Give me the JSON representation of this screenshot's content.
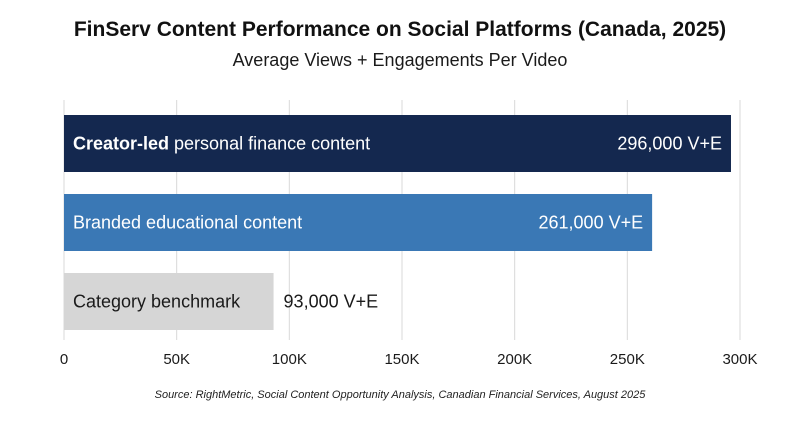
{
  "chart_data": {
    "type": "bar",
    "orientation": "horizontal",
    "title": "FinServ Content Performance on Social Platforms (Canada, 2025)",
    "subtitle": "Average Views + Engagements Per Video",
    "categories": [
      {
        "bold": "Creator-led",
        "rest": " personal finance content",
        "value_label": "296,000 V+E",
        "color": "#14284f",
        "text_color": "#ffffff",
        "label_outside": false
      },
      {
        "bold": "",
        "rest": "Branded educational content",
        "value_label": "261,000 V+E",
        "color": "#3a78b5",
        "text_color": "#ffffff",
        "label_outside": false
      },
      {
        "bold": "",
        "rest": "Category benchmark",
        "value_label": "93,000 V+E",
        "color": "#d6d6d6",
        "text_color": "#1a1a1a",
        "label_outside": true
      }
    ],
    "values": [
      296000,
      261000,
      93000
    ],
    "xlim": [
      0,
      300000
    ],
    "x_ticks": [
      0,
      50000,
      100000,
      150000,
      200000,
      250000,
      300000
    ],
    "x_tick_labels": [
      "0",
      "50K",
      "100K",
      "150K",
      "200K",
      "250K",
      "300K"
    ],
    "grid": "vertical",
    "source": "Source: RightMetric, Social Content Opportunity Analysis, Canadian Financial Services, August 2025"
  }
}
